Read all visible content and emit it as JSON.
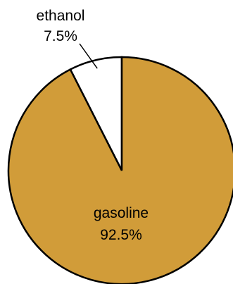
{
  "chart_data": {
    "type": "pie",
    "title": "",
    "slices": [
      {
        "label": "ethanol",
        "value_label": "7.5%",
        "value": 7.5,
        "color": "#ffffff"
      },
      {
        "label": "gasoline",
        "value_label": "92.5%",
        "value": 92.5,
        "color": "#d19c39"
      }
    ],
    "start_angle_deg": 0,
    "direction": "counterclockwise",
    "outline_color": "#000000"
  }
}
